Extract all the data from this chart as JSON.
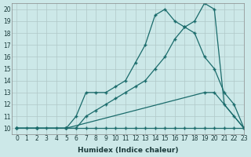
{
  "xlabel": "Humidex (Indice chaleur)",
  "ylabel": "",
  "background_color": "#cce8e8",
  "grid_color": "#b0c8c8",
  "line_color": "#1a6b6b",
  "xlim": [
    -0.5,
    23
  ],
  "ylim": [
    9.5,
    20.5
  ],
  "xticks": [
    0,
    1,
    2,
    3,
    4,
    5,
    6,
    7,
    8,
    9,
    10,
    11,
    12,
    13,
    14,
    15,
    16,
    17,
    18,
    19,
    20,
    21,
    22,
    23
  ],
  "yticks": [
    10,
    11,
    12,
    13,
    14,
    15,
    16,
    17,
    18,
    19,
    20
  ],
  "line1_x": [
    0,
    1,
    2,
    3,
    4,
    5,
    6,
    7,
    8,
    9,
    10,
    11,
    12,
    13,
    14,
    15,
    16,
    17,
    18,
    19,
    20,
    21,
    22,
    23
  ],
  "line1_y": [
    10,
    10,
    10,
    10,
    10,
    10,
    10,
    10,
    10,
    10,
    10,
    10,
    10,
    10,
    10,
    10,
    10,
    10,
    10,
    10,
    10,
    10,
    10,
    10
  ],
  "line2_x": [
    0,
    2,
    5,
    6,
    7,
    8,
    9,
    10,
    11,
    12,
    13,
    14,
    15,
    16,
    17,
    18,
    19,
    20,
    21,
    22,
    23
  ],
  "line2_y": [
    10,
    10,
    10,
    11,
    13,
    13,
    13,
    13.5,
    14,
    15.5,
    17,
    19.5,
    20,
    19,
    18.5,
    18,
    16,
    15,
    13,
    12,
    10
  ],
  "line3_x": [
    0,
    2,
    5,
    6,
    7,
    8,
    9,
    10,
    11,
    12,
    13,
    14,
    15,
    16,
    17,
    18,
    19,
    20,
    21,
    22,
    23
  ],
  "line3_y": [
    10,
    10,
    10,
    10,
    11,
    11.5,
    12,
    12.5,
    13,
    13.5,
    14,
    15,
    16,
    17.5,
    18.5,
    19,
    20.5,
    20,
    12,
    11,
    10
  ],
  "line4_x": [
    0,
    2,
    5,
    19,
    20,
    23
  ],
  "line4_y": [
    10,
    10,
    10,
    13,
    13,
    10
  ],
  "marker": "+",
  "marker_size": 3,
  "linewidth": 0.9,
  "xlabel_fontsize": 6.5,
  "tick_fontsize": 5.5
}
